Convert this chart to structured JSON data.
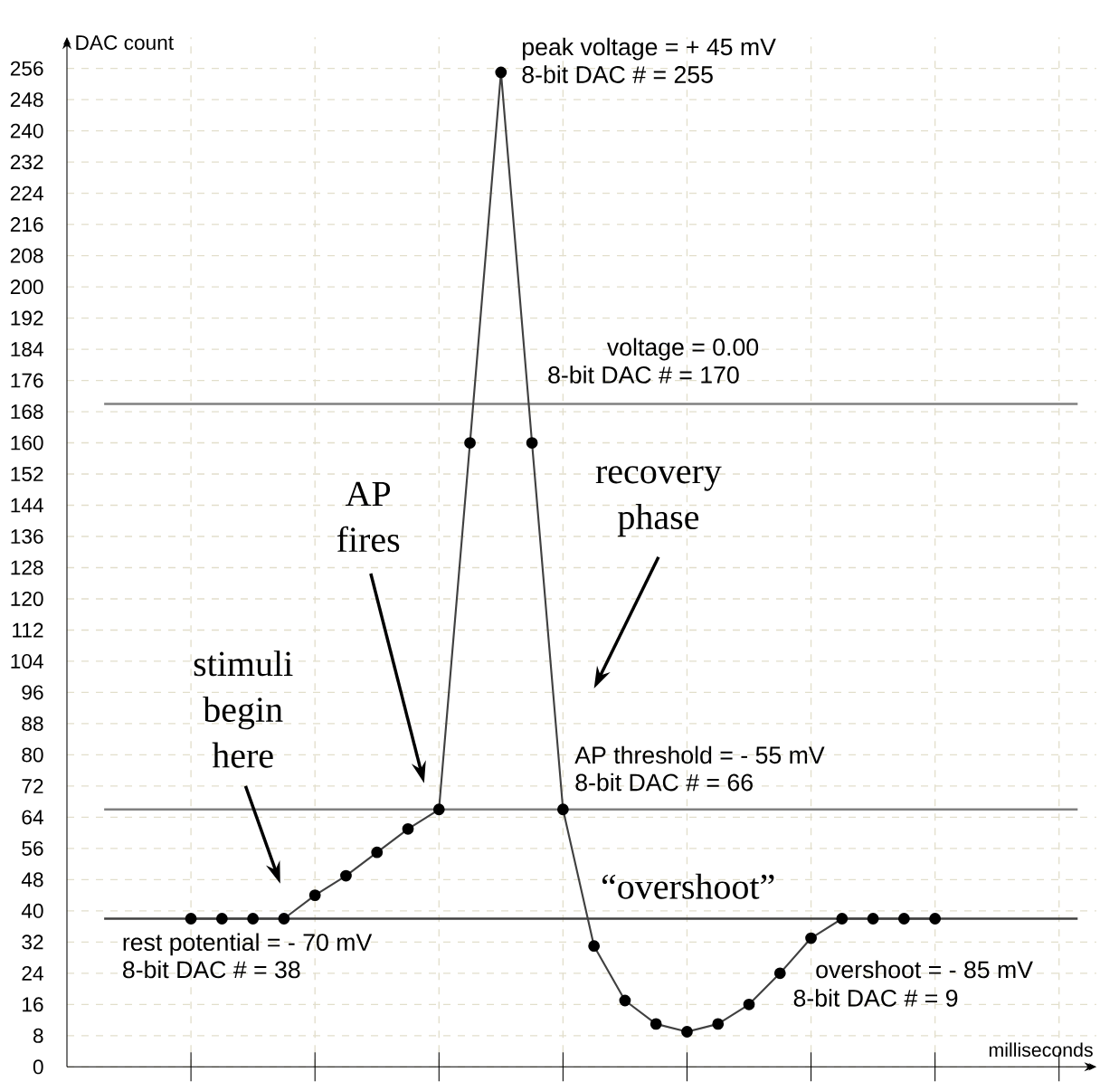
{
  "chart_data": {
    "type": "line",
    "xlabel": "milliseconds",
    "ylabel": "DAC count",
    "categories": [
      null,
      null,
      null,
      null,
      null,
      null,
      null,
      null,
      null,
      null,
      null,
      null,
      null,
      null,
      null,
      null,
      null,
      null,
      null,
      null,
      null,
      null,
      null,
      null,
      null
    ],
    "series": [
      {
        "color": "#404040",
        "values": [
          38,
          38,
          38,
          38,
          44,
          49,
          55,
          61,
          66,
          160,
          255,
          160,
          66,
          31,
          17,
          11,
          9,
          11,
          16,
          24,
          33,
          38,
          38,
          38,
          38
        ]
      }
    ],
    "ylim": [
      0,
      264
    ],
    "yticks": [
      0,
      8,
      16,
      24,
      32,
      40,
      48,
      56,
      64,
      72,
      80,
      88,
      96,
      104,
      112,
      120,
      128,
      136,
      144,
      152,
      160,
      168,
      176,
      184,
      192,
      200,
      208,
      216,
      224,
      232,
      240,
      248,
      256
    ],
    "grid": true,
    "marker": "circle",
    "ref_lines": [
      {
        "axis": "y",
        "value": 170,
        "label": "8-bit DAC # = 170",
        "color": "#808080"
      },
      {
        "axis": "y",
        "value": 66,
        "label": "8-bit DAC # = 66",
        "color": "#808080"
      },
      {
        "axis": "y",
        "value": 38,
        "label": "8-bit DAC # = 38",
        "color": "#404040"
      }
    ],
    "annotations": [
      "peak voltage = + 45 mV",
      "8-bit DAC # = 255",
      "voltage = 0.00",
      "AP threshold = - 55 mV",
      "rest potential = - 70 mV",
      "overshoot = - 85 mV",
      "8-bit DAC # = 9",
      "“overshoot”",
      "stimuli begin here",
      "AP fires",
      "recovery phase"
    ]
  }
}
